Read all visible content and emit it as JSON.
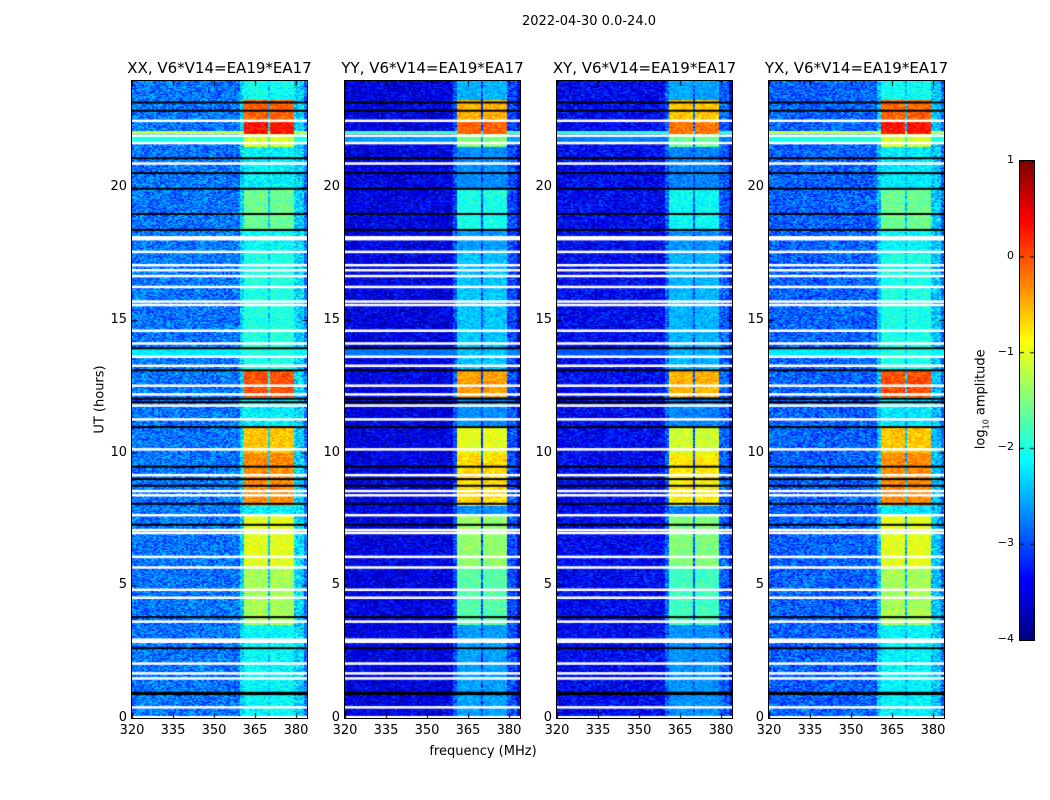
{
  "figure_title": "2022-04-30 0.0-24.0",
  "chart_data": {
    "type": "heatmap",
    "title": "2022-04-30 0.0-24.0",
    "xlabel": "frequency (MHz)",
    "ylabel": "UT (hours)",
    "xlim": [
      320,
      384
    ],
    "ylim": [
      0,
      24
    ],
    "xticks": [
      320,
      335,
      350,
      365,
      380
    ],
    "yticks": [
      0,
      5,
      10,
      15,
      20
    ],
    "colormap": "jet",
    "colorbar": {
      "label_main": "log",
      "label_sub": "10",
      "label_rest": " amplitude",
      "range": [
        -4,
        1
      ],
      "ticks": [
        1,
        0,
        -1,
        -2,
        -3,
        -4
      ]
    },
    "signal_bands_mhz": [
      [
        360.8,
        365.0
      ],
      [
        365.5,
        369.5
      ],
      [
        370.0,
        374.5
      ],
      [
        375.0,
        379.0
      ]
    ],
    "signal_segments": [
      {
        "t": [
          0.0,
          3.5
        ],
        "log_amp": -2.2
      },
      {
        "t": [
          3.5,
          5.7
        ],
        "log_amp": -1.3
      },
      {
        "t": [
          5.7,
          7.6
        ],
        "log_amp": -1.0
      },
      {
        "t": [
          7.6,
          8.0
        ],
        "log_amp": -2.3
      },
      {
        "t": [
          8.0,
          10.0
        ],
        "log_amp": -0.3
      },
      {
        "t": [
          10.0,
          11.0
        ],
        "log_amp": -0.6
      },
      {
        "t": [
          11.0,
          12.1
        ],
        "log_amp": -2.3
      },
      {
        "t": [
          12.1,
          13.1
        ],
        "log_amp": 0.0
      },
      {
        "t": [
          13.1,
          17.5
        ],
        "log_amp": -2.0
      },
      {
        "t": [
          17.5,
          18.4
        ],
        "log_amp": -2.2
      },
      {
        "t": [
          18.4,
          19.9
        ],
        "log_amp": -1.6
      },
      {
        "t": [
          19.9,
          21.5
        ],
        "log_amp": -2.3
      },
      {
        "t": [
          21.5,
          22.0
        ],
        "log_amp": -1.1
      },
      {
        "t": [
          22.0,
          22.5
        ],
        "log_amp": 0.3
      },
      {
        "t": [
          22.5,
          23.3
        ],
        "log_amp": -0.1
      },
      {
        "t": [
          23.3,
          24.0
        ],
        "log_amp": -2.1
      }
    ],
    "broadband_rows": [
      {
        "t": [
          13.65,
          13.9
        ],
        "log_amp": -2.2
      },
      {
        "t": [
          21.7,
          21.95
        ],
        "log_amp": -2.0
      },
      {
        "t": [
          22.0,
          22.12
        ],
        "log_amp": -1.2
      }
    ],
    "flagged_rows_white": [
      0.04,
      0.41,
      1.5,
      1.69,
      2.06,
      2.88,
      2.96,
      3.64,
      4.54,
      4.84,
      5.68,
      6.08,
      6.98,
      7.09,
      7.65,
      8.4,
      8.56,
      9.16,
      10.13,
      11.26,
      11.78,
      12.2,
      12.53,
      13.28,
      13.62,
      14.12,
      14.6,
      15.57,
      15.7,
      16.25,
      16.66,
      16.88,
      17.07,
      17.57,
      18.05,
      18.12,
      20.9,
      21.67,
      21.95,
      22.51
    ],
    "flagged_rows_black": [
      0.9,
      0.95,
      2.63,
      3.8,
      7.28,
      8.07,
      8.75,
      9.0,
      9.47,
      10.96,
      11.9,
      12.03,
      13.1,
      13.93,
      18.39,
      18.99,
      19.94,
      20.53,
      21.09,
      22.88,
      23.19
    ],
    "panels": [
      {
        "title": "XX, V6*V14=EA19*EA17",
        "background_log_amp": -2.8,
        "signal_offset": 0.0
      },
      {
        "title": "YY, V6*V14=EA19*EA17",
        "background_log_amp": -3.5,
        "signal_offset": -0.4
      },
      {
        "title": "XY, V6*V14=EA19*EA17",
        "background_log_amp": -3.4,
        "signal_offset": -0.5
      },
      {
        "title": "YX, V6*V14=EA19*EA17",
        "background_log_amp": -2.9,
        "signal_offset": 0.0
      }
    ]
  }
}
